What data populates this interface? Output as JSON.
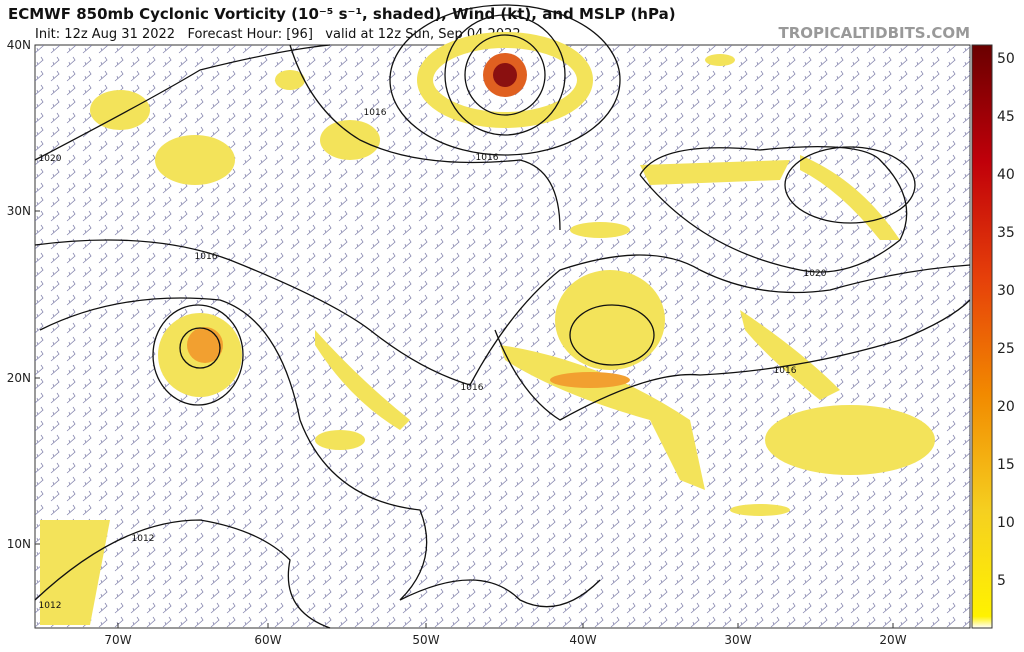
{
  "header": {
    "title": "ECMWF 850mb Cyclonic Vorticity (10⁻⁵ s⁻¹, shaded), Wind (kt), and MSLP (hPa)",
    "subtitle": "Init: 12z Aug 31 2022   Forecast Hour: [96]   valid at 12z Sun, Sep 04 2022",
    "source": "TROPICALTIDBITS.COM"
  },
  "map": {
    "lat_labels": [
      "40N",
      "30N",
      "20N",
      "10N"
    ],
    "lon_labels": [
      "70W",
      "60W",
      "50W",
      "40W",
      "30W",
      "20W"
    ],
    "contour_labels": [
      "1016",
      "1020",
      "1016",
      "1016",
      "1020",
      "1016",
      "1016",
      "1012",
      "1012"
    ]
  },
  "colorbar": {
    "labels": [
      "50",
      "45",
      "40",
      "35",
      "30",
      "25",
      "20",
      "15",
      "10",
      "5"
    ]
  }
}
